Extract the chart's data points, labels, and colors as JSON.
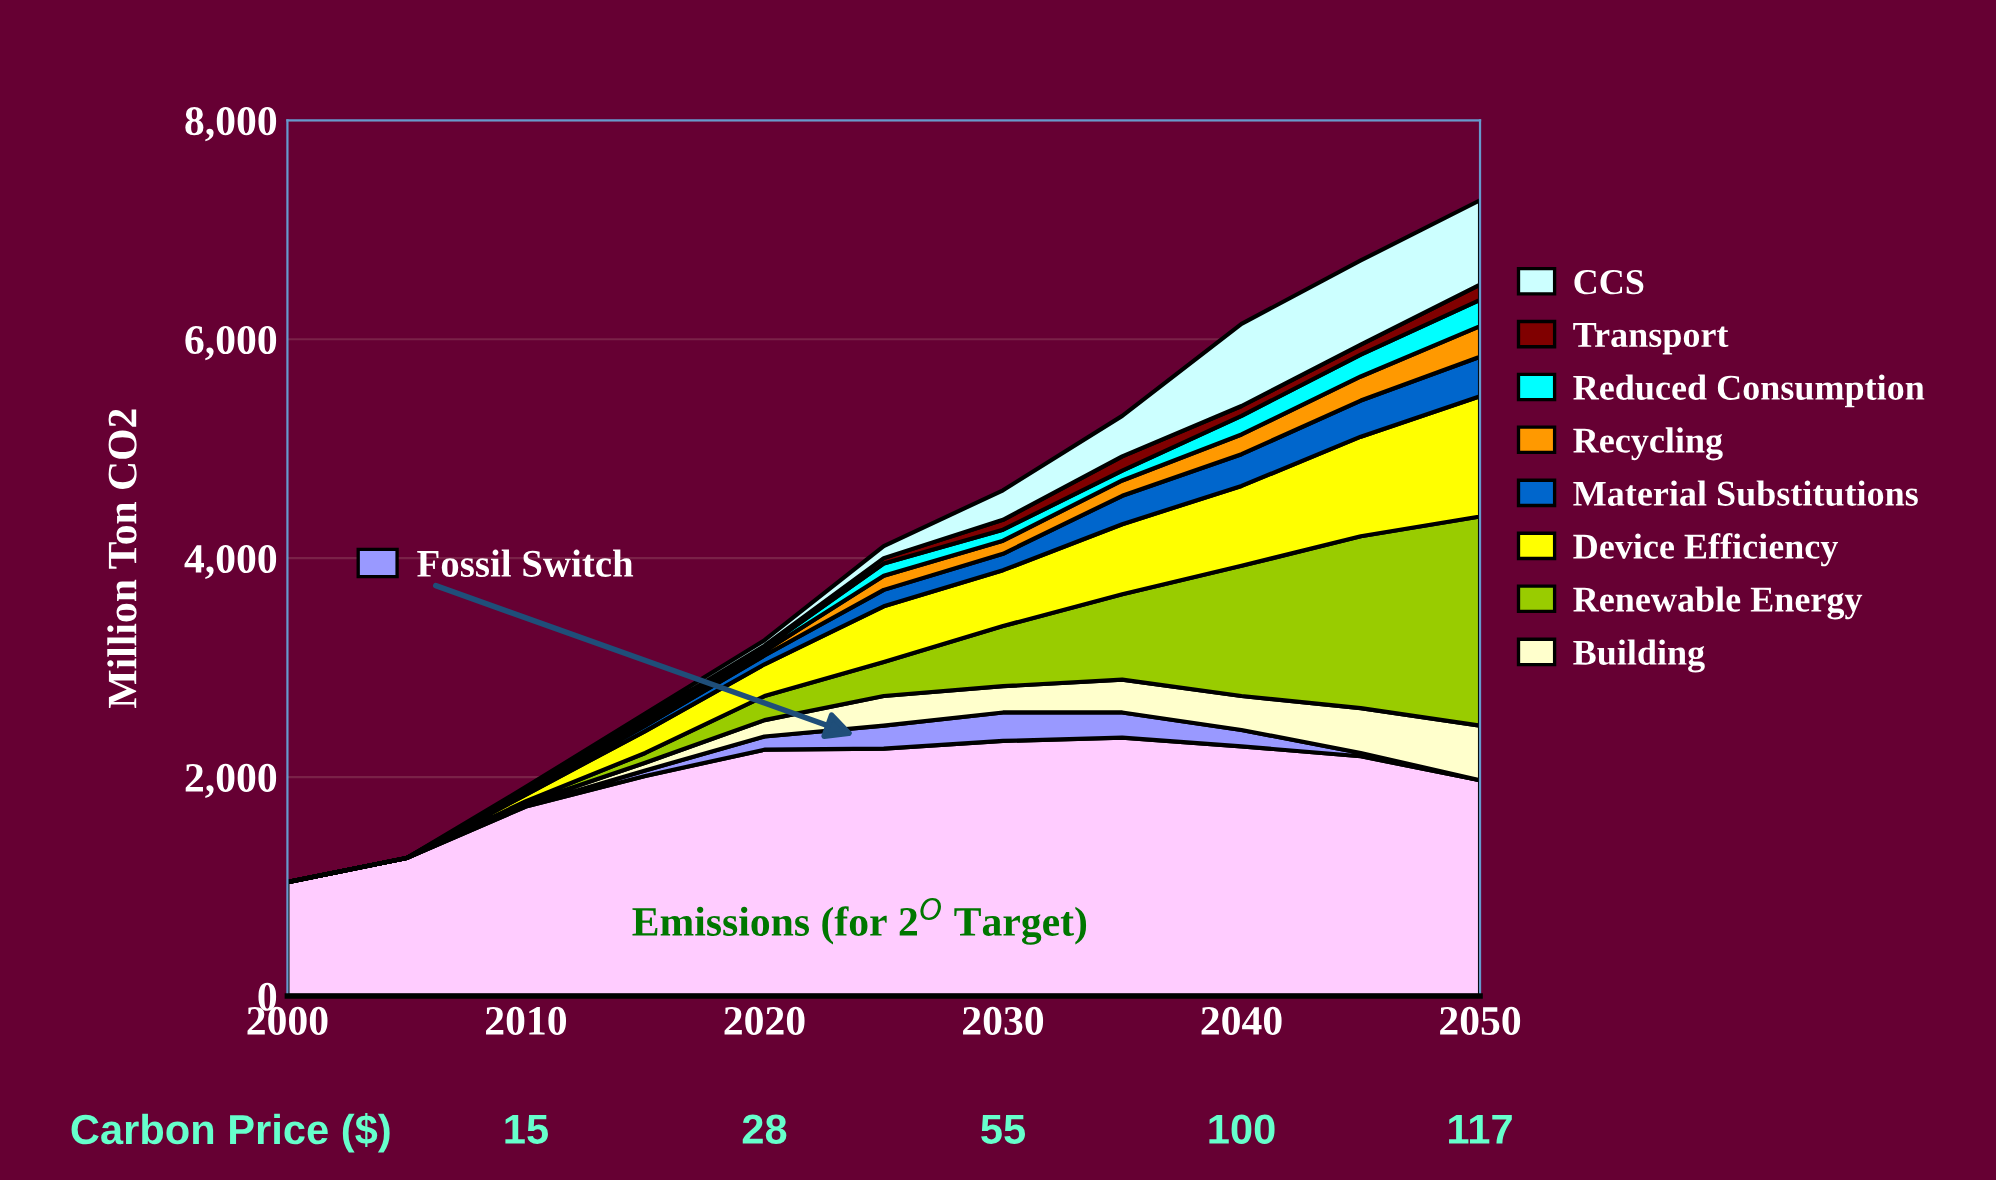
{
  "chart_data": {
    "type": "area",
    "stacked": true,
    "ylabel": "Million Ton CO2",
    "x": [
      2000,
      2005,
      2010,
      2015,
      2020,
      2025,
      2030,
      2035,
      2040,
      2045,
      2050
    ],
    "xlim": [
      2000,
      2050
    ],
    "xticks": [
      2000,
      2010,
      2020,
      2030,
      2040,
      2050
    ],
    "ylim": [
      0,
      8000
    ],
    "yticks": [
      {
        "value": 0,
        "label": "0"
      },
      {
        "value": 2000,
        "label": "2,000"
      },
      {
        "value": 4000,
        "label": "4,000"
      },
      {
        "value": 6000,
        "label": "6,000"
      },
      {
        "value": 8000,
        "label": "8,000"
      }
    ],
    "grid": "y",
    "legend": "right",
    "series": [
      {
        "name": "Emissions (for 2$^{O}$ Target)",
        "color": "#ffccff",
        "values": [
          1040,
          1260,
          1730,
          2010,
          2250,
          2260,
          2330,
          2360,
          2280,
          2190,
          1970
        ]
      },
      {
        "name": "Fossil Switch",
        "color": "#9999ff",
        "values": [
          0,
          0,
          10,
          50,
          120,
          210,
          260,
          230,
          150,
          30,
          0
        ]
      },
      {
        "name": "Building",
        "color": "#ffffcc",
        "values": [
          0,
          0,
          20,
          70,
          150,
          270,
          240,
          300,
          310,
          410,
          500
        ]
      },
      {
        "name": "Renewable Energy",
        "color": "#99cc00",
        "values": [
          0,
          0,
          20,
          90,
          220,
          310,
          550,
          780,
          1190,
          1570,
          1910
        ]
      },
      {
        "name": "Device Efficiency",
        "color": "#ffff00",
        "values": [
          0,
          0,
          60,
          200,
          290,
          510,
          510,
          640,
          730,
          910,
          1100
        ]
      },
      {
        "name": "Material Substitutions",
        "color": "#0066cc",
        "values": [
          0,
          0,
          20,
          50,
          80,
          150,
          150,
          260,
          290,
          330,
          360
        ]
      },
      {
        "name": "Recycling",
        "color": "#ff9900",
        "values": [
          0,
          0,
          10,
          30,
          40,
          130,
          120,
          140,
          180,
          220,
          280
        ]
      },
      {
        "name": "Reduced Consumption",
        "color": "#00ffff",
        "values": [
          0,
          0,
          10,
          20,
          30,
          110,
          100,
          90,
          170,
          200,
          240
        ]
      },
      {
        "name": "Transport",
        "color": "#800000",
        "values": [
          0,
          0,
          10,
          20,
          20,
          50,
          90,
          130,
          90,
          90,
          140
        ]
      },
      {
        "name": "CCS",
        "color": "#ccffff",
        "values": [
          0,
          0,
          20,
          40,
          50,
          110,
          270,
          370,
          750,
          770,
          770
        ]
      }
    ],
    "annotations": [
      "Carbon Price ($)",
      "15",
      "28",
      "55",
      "100",
      "117"
    ]
  }
}
